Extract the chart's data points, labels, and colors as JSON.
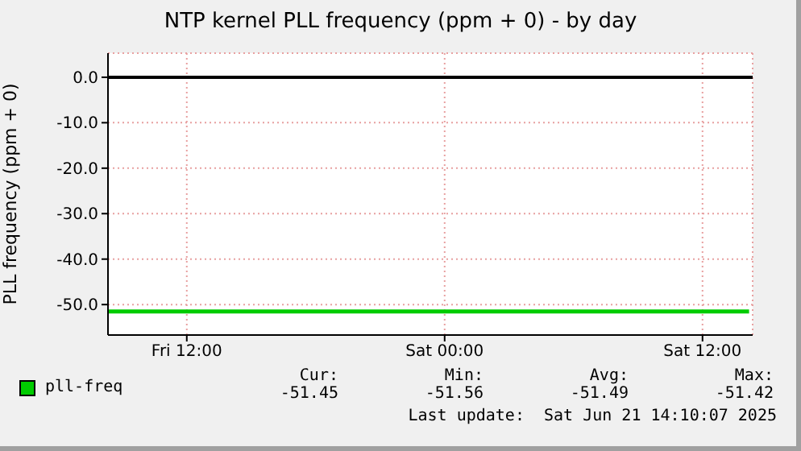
{
  "chart_data": {
    "type": "line",
    "title": "NTP kernel PLL frequency (ppm + 0) - by day",
    "ylabel": "PLL frequency (ppm + 0)",
    "xlim": [
      "2025-06-20T08:20",
      "2025-06-21T14:20"
    ],
    "xticks": [
      {
        "value": "2025-06-20T12:00",
        "label": "Fri 12:00"
      },
      {
        "value": "2025-06-21T00:00",
        "label": "Sat 00:00"
      },
      {
        "value": "2025-06-21T12:00",
        "label": "Sat 12:00"
      }
    ],
    "ylim": [
      -56.7,
      5.3
    ],
    "yticks": [
      {
        "value": 0,
        "label": "0.0"
      },
      {
        "value": -10,
        "label": "-10.0"
      },
      {
        "value": -20,
        "label": "-20.0"
      },
      {
        "value": -30,
        "label": "-30.0"
      },
      {
        "value": -40,
        "label": "-40.0"
      },
      {
        "value": -50,
        "label": "-50.0"
      }
    ],
    "grid": true,
    "legend": "bottom",
    "marker": "none",
    "x": [
      "2025-06-20T08:20",
      "2025-06-21T14:10"
    ],
    "series": [
      {
        "name": "pll-freq",
        "color": "#00cc00",
        "values": [
          -51.5,
          -51.5
        ]
      }
    ],
    "ref_lines": [
      {
        "axis": "y",
        "value": 0,
        "color": "#000000"
      }
    ],
    "annotations": [
      "Cur:",
      "-51.45",
      "Min:",
      "-51.56",
      "Avg:",
      "-51.49",
      "Max:",
      "-51.42",
      "Last update:  Sat Jun 21 14:10:07 2025"
    ]
  }
}
